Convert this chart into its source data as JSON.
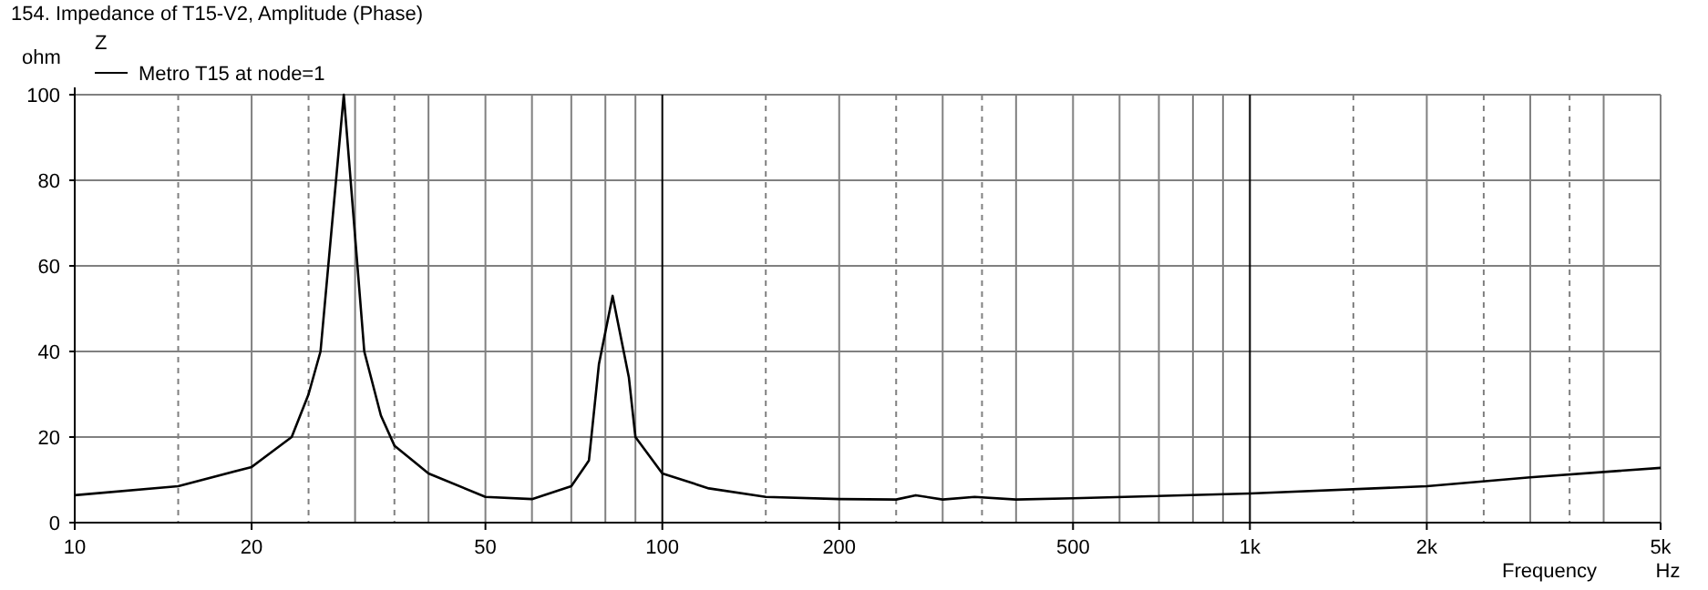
{
  "chart_data": {
    "type": "line",
    "title": "154. Impedance of T15-V2, Amplitude (Phase)",
    "legend_title": "Z",
    "ylabel": "ohm",
    "xlabel": "Frequency",
    "annotations": [
      "Hz"
    ],
    "log": "x",
    "grid": true,
    "legend": "top left",
    "xlim": [
      10,
      5000
    ],
    "ylim": [
      0,
      100
    ],
    "xticks": [
      10,
      {
        "value": 15,
        "label": null
      },
      20,
      {
        "value": 25,
        "label": null
      },
      {
        "value": 30,
        "label": null
      },
      {
        "value": 35,
        "label": null
      },
      {
        "value": 40,
        "label": null
      },
      50,
      {
        "value": 60,
        "label": null
      },
      {
        "value": 70,
        "label": null
      },
      {
        "value": 80,
        "label": null
      },
      {
        "value": 90,
        "label": null
      },
      100,
      {
        "value": 150,
        "label": null
      },
      200,
      {
        "value": 250,
        "label": null
      },
      {
        "value": 300,
        "label": null
      },
      {
        "value": 350,
        "label": null
      },
      {
        "value": 400,
        "label": null
      },
      500,
      {
        "value": 600,
        "label": null
      },
      {
        "value": 700,
        "label": null
      },
      {
        "value": 800,
        "label": null
      },
      {
        "value": 900,
        "label": null
      },
      {
        "value": 1000,
        "label": "1k"
      },
      {
        "value": 1500,
        "label": null
      },
      {
        "value": 2000,
        "label": "2k"
      },
      {
        "value": 2500,
        "label": null
      },
      {
        "value": 3000,
        "label": null
      },
      {
        "value": 3500,
        "label": null
      },
      {
        "value": 4000,
        "label": null
      },
      {
        "value": 5000,
        "label": "5k"
      }
    ],
    "yticks": [
      0,
      20,
      40,
      60,
      80,
      100
    ],
    "x": [
      10,
      15,
      20,
      23.4,
      25,
      26.2,
      28.7,
      31.1,
      33.2,
      35,
      40,
      50,
      60,
      70,
      75,
      78,
      82.3,
      87.7,
      90,
      100,
      120,
      150,
      200,
      250,
      270,
      300,
      340,
      400,
      500,
      1000,
      2000,
      3000,
      5000
    ],
    "series": [
      {
        "name": "Metro T15 at node=1",
        "color": "#000000",
        "values": [
          6.4,
          8.5,
          13,
          20,
          30,
          40,
          100,
          40,
          25,
          18,
          11.5,
          6,
          5.5,
          8.5,
          14.5,
          37,
          53,
          34,
          20,
          11.5,
          8,
          6,
          5.5,
          5.4,
          6.4,
          5.4,
          6,
          5.4,
          5.7,
          6.8,
          8.5,
          10.6,
          12.8
        ]
      }
    ]
  }
}
